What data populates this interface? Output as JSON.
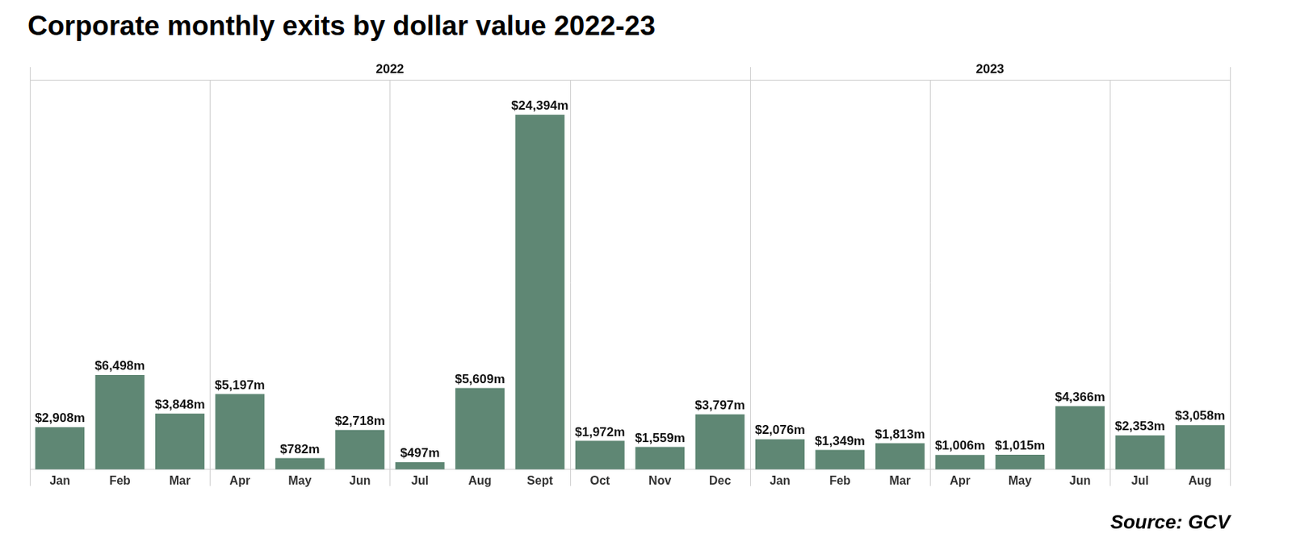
{
  "chart_data": {
    "type": "bar",
    "title": "Corporate monthly exits by dollar value 2022-23",
    "source": "Source: GCV",
    "categories": [
      "Jan",
      "Feb",
      "Mar",
      "Apr",
      "May",
      "Jun",
      "Jul",
      "Aug",
      "Sept",
      "Oct",
      "Nov",
      "Dec",
      "Jan",
      "Feb",
      "Mar",
      "Apr",
      "May",
      "Jun",
      "Jul",
      "Aug"
    ],
    "x_groups": [
      {
        "label": "2022",
        "size": 12
      },
      {
        "label": "2023",
        "size": 8
      }
    ],
    "values": [
      2908,
      6498,
      3848,
      5197,
      782,
      2718,
      497,
      5609,
      24394,
      1972,
      1559,
      3797,
      2076,
      1349,
      1813,
      1006,
      1015,
      4366,
      2353,
      3058
    ],
    "value_labels": [
      "$2,908m",
      "$6,498m",
      "$3,848m",
      "$5,197m",
      "$782m",
      "$2,718m",
      "$497m",
      "$5,609m",
      "$24,394m",
      "$1,972m",
      "$1,559m",
      "$3,797m",
      "$2,076m",
      "$1,349m",
      "$1,813m",
      "$1,006m",
      "$1,015m",
      "$4,366m",
      "$2,353m",
      "$3,058m"
    ],
    "color": "#5f8774",
    "ylim": [
      0,
      26800
    ],
    "grid": false,
    "data_labels": true,
    "tick_labels": "x"
  }
}
